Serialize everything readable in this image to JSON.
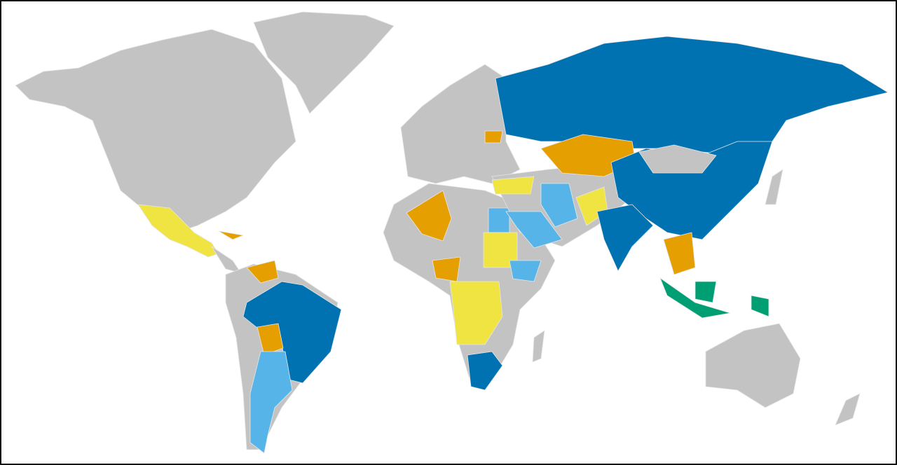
{
  "map": {
    "type": "choropleth world map",
    "colors": {
      "none": "#c3c3c3",
      "dark_blue": "#0072b2",
      "orange": "#e69f00",
      "yellow": "#f0e442",
      "light_blue": "#56b4e9",
      "green": "#009e73",
      "ocean": "#ffffff"
    },
    "regions": [
      {
        "id": "north-america",
        "category": "none"
      },
      {
        "id": "greenland",
        "category": "none"
      },
      {
        "id": "mexico",
        "category": "yellow"
      },
      {
        "id": "central-america",
        "category": "none"
      },
      {
        "id": "cuba",
        "category": "orange"
      },
      {
        "id": "south-america",
        "category": "none"
      },
      {
        "id": "brazil",
        "category": "dark_blue"
      },
      {
        "id": "venezuela",
        "category": "orange"
      },
      {
        "id": "bolivia",
        "category": "orange"
      },
      {
        "id": "argentina",
        "category": "light_blue"
      },
      {
        "id": "europe",
        "category": "none"
      },
      {
        "id": "belarus",
        "category": "orange"
      },
      {
        "id": "africa",
        "category": "none"
      },
      {
        "id": "algeria",
        "category": "orange"
      },
      {
        "id": "egypt",
        "category": "light_blue"
      },
      {
        "id": "sudan",
        "category": "yellow"
      },
      {
        "id": "ethiopia",
        "category": "light_blue"
      },
      {
        "id": "nigeria",
        "category": "orange"
      },
      {
        "id": "central-africa",
        "category": "yellow"
      },
      {
        "id": "south-africa",
        "category": "dark_blue"
      },
      {
        "id": "madagascar",
        "category": "none"
      },
      {
        "id": "middle-asia",
        "category": "none"
      },
      {
        "id": "russia",
        "category": "dark_blue"
      },
      {
        "id": "kazakhstan",
        "category": "orange"
      },
      {
        "id": "turkey",
        "category": "yellow"
      },
      {
        "id": "iran",
        "category": "light_blue"
      },
      {
        "id": "saudi-arabia",
        "category": "light_blue"
      },
      {
        "id": "afghanistan",
        "category": "yellow"
      },
      {
        "id": "china",
        "category": "dark_blue"
      },
      {
        "id": "mongolia",
        "category": "none"
      },
      {
        "id": "india",
        "category": "dark_blue"
      },
      {
        "id": "southeast-asia",
        "category": "orange"
      },
      {
        "id": "indonesia-sumatra-java",
        "category": "green"
      },
      {
        "id": "indonesia-borneo",
        "category": "green"
      },
      {
        "id": "indonesia-papua",
        "category": "green"
      },
      {
        "id": "japan",
        "category": "none"
      },
      {
        "id": "australia",
        "category": "none"
      },
      {
        "id": "new-zealand",
        "category": "none"
      }
    ]
  }
}
